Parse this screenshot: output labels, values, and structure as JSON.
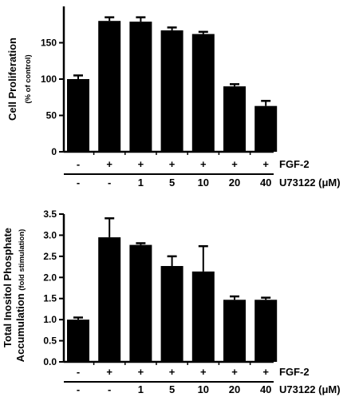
{
  "chart_data": [
    {
      "type": "bar",
      "ylabel": "Cell Proliferation",
      "ylabel_sub": "(% of control)",
      "ylim": [
        0,
        200
      ],
      "yticks": [
        "0",
        "50",
        "100",
        "150"
      ],
      "ytick_values": [
        0,
        50,
        100,
        150
      ],
      "values": [
        100,
        180,
        179,
        167,
        162,
        90,
        63
      ],
      "errors": [
        5,
        5,
        6,
        4,
        3,
        3,
        7
      ],
      "bar_color": "#000000",
      "conditions": [
        {
          "label": "FGF-2",
          "values": [
            "-",
            "+",
            "+",
            "+",
            "+",
            "+",
            "+"
          ]
        },
        {
          "label": "U73122 (μM)",
          "values": [
            "-",
            "-",
            "1",
            "5",
            "10",
            "20",
            "40"
          ]
        }
      ]
    },
    {
      "type": "bar",
      "ylabel": "Total Inositol Phosphate",
      "ylabel2": "Accumulation",
      "ylabel_sub": "(fold stimulation)",
      "ylim": [
        0,
        3.5
      ],
      "yticks": [
        "0.0",
        "0.5",
        "1.0",
        "1.5",
        "2.0",
        "2.5",
        "3.0",
        "3.5"
      ],
      "ytick_values": [
        0,
        0.5,
        1.0,
        1.5,
        2.0,
        2.5,
        3.0,
        3.5
      ],
      "values": [
        1.0,
        2.95,
        2.77,
        2.27,
        2.14,
        1.47,
        1.47
      ],
      "errors": [
        0.05,
        0.45,
        0.04,
        0.23,
        0.6,
        0.08,
        0.05
      ],
      "bar_color": "#000000",
      "conditions": [
        {
          "label": "FGF-2",
          "values": [
            "-",
            "+",
            "+",
            "+",
            "+",
            "+",
            "+"
          ]
        },
        {
          "label": "U73122 (μM)",
          "values": [
            "-",
            "-",
            "1",
            "5",
            "10",
            "20",
            "40"
          ]
        }
      ]
    }
  ]
}
